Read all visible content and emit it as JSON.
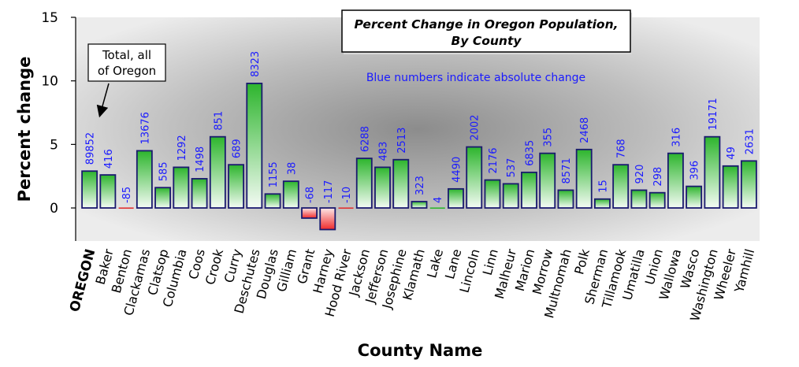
{
  "chart_data": {
    "type": "bar",
    "title": [
      "Percent Change in Oregon Population,",
      "By County"
    ],
    "xlabel": "County Name",
    "ylabel": "Percent change",
    "ylim": [
      -2.6,
      15
    ],
    "yticks": [
      0,
      5,
      10,
      15
    ],
    "annotation": "Blue numbers indicate absolute change",
    "callout": [
      "Total, all",
      "of Oregon"
    ],
    "colors": {
      "positive_top": "#2db52d",
      "positive_bottom": "#f4fbf4",
      "negative_top": "#fde8e8",
      "negative_bottom": "#f02a2a",
      "bar_border": "#1a1a6e",
      "label_blue": "#1a1aff"
    },
    "categories": [
      "OREGON",
      "Baker",
      "Benton",
      "Clackamas",
      "Clatsop",
      "Columbia",
      "Coos",
      "Crook",
      "Curry",
      "Deschutes",
      "Douglas",
      "Gilliam",
      "Grant",
      "Harney",
      "Hood River",
      "Jackson",
      "Jefferson",
      "Josephine",
      "Klamath",
      "Lake",
      "Lane",
      "Lincoln",
      "Linn",
      "Malheur",
      "Marion",
      "Morrow",
      "Multnomah",
      "Polk",
      "Sherman",
      "Tillamook",
      "Umatilla",
      "Union",
      "Wallowa",
      "Wasco",
      "Washington",
      "Wheeler",
      "Yamhill"
    ],
    "values": [
      2.9,
      2.6,
      -0.1,
      4.5,
      1.6,
      3.2,
      2.3,
      5.6,
      3.4,
      9.8,
      1.1,
      2.1,
      -0.8,
      -1.7,
      -0.05,
      3.9,
      3.2,
      3.8,
      0.5,
      0.05,
      1.5,
      4.8,
      2.2,
      1.9,
      2.8,
      4.3,
      1.4,
      4.6,
      0.7,
      3.4,
      1.4,
      1.2,
      4.3,
      1.7,
      5.6,
      3.3,
      3.7
    ],
    "data_labels": [
      "89852",
      "416",
      "-85",
      "13676",
      "585",
      "1292",
      "1498",
      "851",
      "689",
      "8323",
      "1155",
      "38",
      "-68",
      "-117",
      "-10",
      "6288",
      "483",
      "2513",
      "323",
      "4",
      "4490",
      "2002",
      "2176",
      "537",
      "6835",
      "355",
      "8571",
      "2468",
      "15",
      "768",
      "920",
      "298",
      "316",
      "396",
      "19171",
      "49",
      "2631"
    ]
  }
}
